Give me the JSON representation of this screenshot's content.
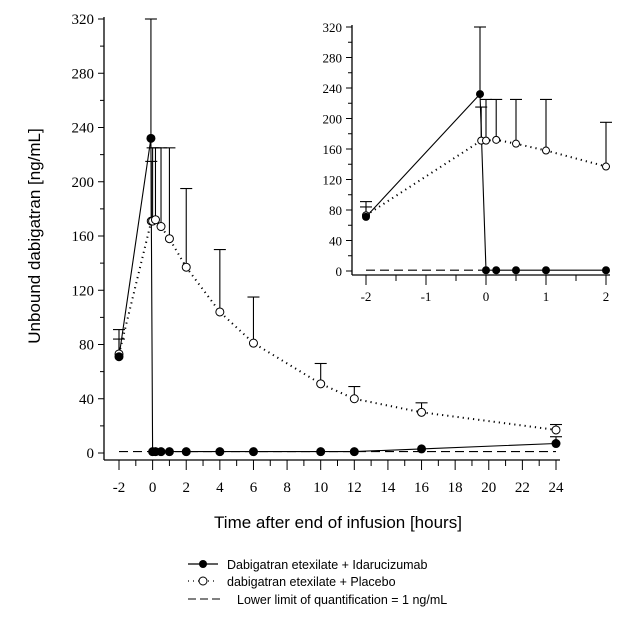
{
  "chart_data": [
    {
      "type": "line",
      "panel": "main",
      "xlabel": "Time after end of infusion [hours]",
      "ylabel": "Unbound dabigatran [ng/mL]",
      "xlim": [
        -2,
        24
      ],
      "ylim": [
        0,
        320
      ],
      "xticks": [
        -2,
        0,
        2,
        4,
        6,
        8,
        10,
        12,
        14,
        16,
        18,
        20,
        22,
        24
      ],
      "yticks": [
        0,
        40,
        80,
        120,
        160,
        200,
        240,
        280,
        320
      ],
      "grid": false,
      "legend_position": "bottom",
      "series": [
        {
          "name": "Dabigatran etexilate + Idarucizumab",
          "style": "solid",
          "marker": "filled-circle",
          "x": [
            -2,
            -0.1,
            0,
            0.17,
            0.5,
            1,
            2,
            4,
            6,
            10,
            12,
            16,
            24
          ],
          "y": [
            71,
            232,
            1,
            1,
            1,
            1,
            1,
            1,
            1,
            1,
            1,
            3,
            7
          ],
          "error_upper": [
            84,
            320,
            null,
            null,
            null,
            null,
            null,
            null,
            null,
            null,
            null,
            null,
            12
          ]
        },
        {
          "name": "dabigatran etexilate + Placebo",
          "style": "dotted",
          "marker": "open-circle",
          "x": [
            -2,
            -0.08,
            0,
            0.17,
            0.5,
            1,
            2,
            4,
            6,
            10,
            12,
            16,
            24
          ],
          "y": [
            73,
            171,
            171,
            172,
            167,
            158,
            137,
            104,
            81,
            51,
            40,
            30,
            17
          ],
          "error_upper": [
            91,
            215,
            225,
            225,
            225,
            225,
            195,
            150,
            115,
            66,
            49,
            37,
            21
          ]
        },
        {
          "name": "Lower limit of quantification = 1 ng/mL",
          "style": "dashed",
          "x": [
            -2,
            24
          ],
          "y": [
            1,
            1
          ]
        }
      ]
    },
    {
      "type": "line",
      "panel": "inset",
      "xlim": [
        -2,
        2
      ],
      "ylim": [
        0,
        320
      ],
      "xticks": [
        -2,
        -1,
        0,
        1,
        2
      ],
      "yticks": [
        0,
        40,
        80,
        120,
        160,
        200,
        240,
        280,
        320
      ],
      "series": [
        {
          "name": "Dabigatran etexilate + Idarucizumab",
          "style": "solid",
          "marker": "filled-circle",
          "x": [
            -2,
            -0.1,
            0,
            0.17,
            0.5,
            1,
            2
          ],
          "y": [
            71,
            232,
            1,
            1,
            1,
            1,
            1
          ],
          "error_upper": [
            84,
            320,
            null,
            null,
            null,
            null,
            null
          ]
        },
        {
          "name": "dabigatran etexilate + Placebo",
          "style": "dotted",
          "marker": "open-circle",
          "x": [
            -2,
            -0.08,
            0,
            0.17,
            0.5,
            1,
            2
          ],
          "y": [
            73,
            171,
            171,
            172,
            167,
            158,
            137
          ],
          "error_upper": [
            91,
            215,
            225,
            225,
            225,
            225,
            195
          ]
        },
        {
          "name": "Lower limit of quantification = 1 ng/mL",
          "style": "dashed",
          "x": [
            -2,
            0
          ],
          "y": [
            1,
            1
          ]
        }
      ]
    }
  ],
  "legend": [
    "Dabigatran etexilate + Idarucizumab",
    "dabigatran etexilate + Placebo",
    "Lower limit of quantification = 1 ng/mL"
  ]
}
